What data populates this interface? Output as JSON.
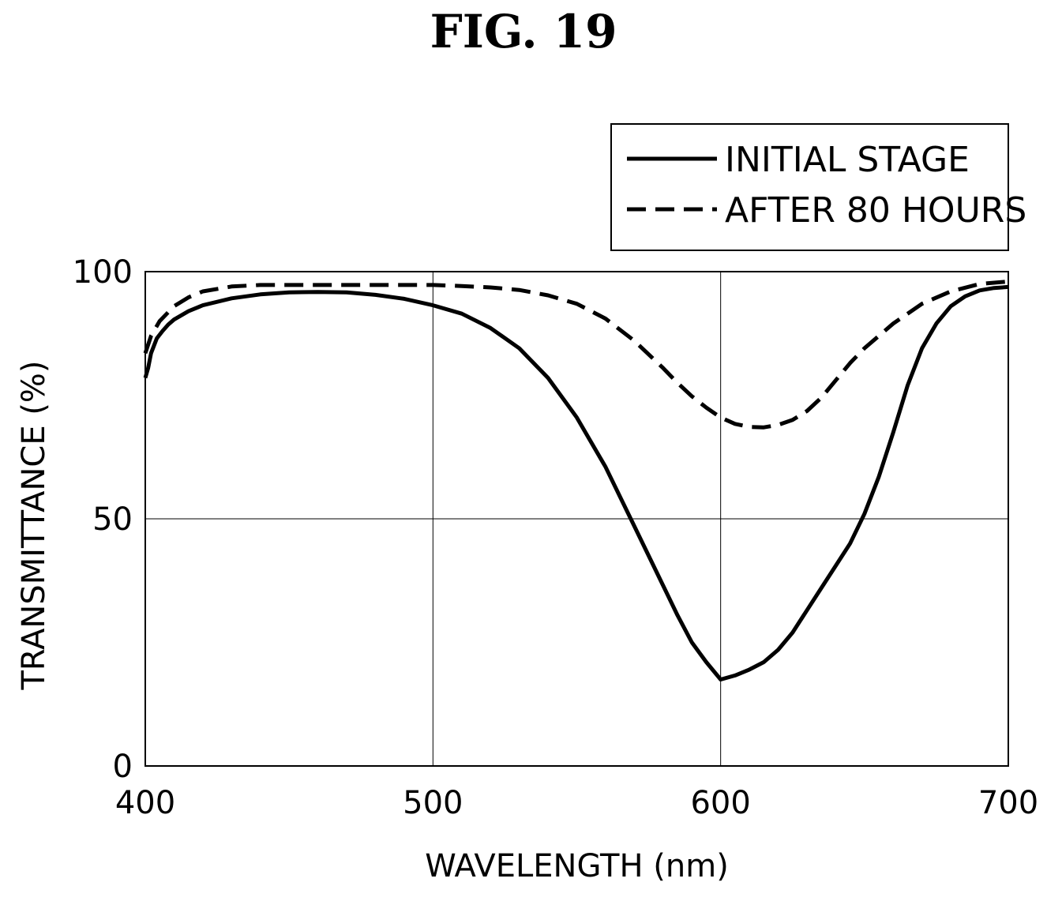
{
  "figure": {
    "title": "FIG. 19"
  },
  "chart_data": {
    "type": "line",
    "title": "FIG. 19",
    "xlabel": "WAVELENGTH (nm)",
    "ylabel": "TRANSMITTANCE (%)",
    "xlim": [
      400,
      700
    ],
    "ylim": [
      0,
      100
    ],
    "xticks": [
      400,
      500,
      600,
      700
    ],
    "yticks": [
      0,
      50,
      100
    ],
    "grid": true,
    "legend_position": "top-right",
    "series": [
      {
        "name": "INITIAL STAGE",
        "style": "solid",
        "color": "#000000",
        "x": [
          400,
          401,
          402,
          404,
          406,
          408,
          410,
          415,
          420,
          430,
          440,
          450,
          460,
          470,
          480,
          490,
          500,
          510,
          520,
          530,
          540,
          550,
          560,
          570,
          580,
          585,
          590,
          595,
          600,
          605,
          610,
          615,
          620,
          625,
          630,
          635,
          640,
          645,
          650,
          655,
          660,
          665,
          670,
          675,
          680,
          685,
          690,
          695,
          700
        ],
        "values": [
          78.5,
          80.5,
          83.5,
          86.5,
          88.0,
          89.3,
          90.3,
          92.0,
          93.2,
          94.6,
          95.4,
          95.8,
          95.9,
          95.8,
          95.3,
          94.5,
          93.2,
          91.5,
          88.6,
          84.5,
          78.5,
          70.5,
          60.5,
          48.5,
          36.5,
          30.5,
          25.0,
          21.0,
          17.5,
          18.3,
          19.5,
          21.0,
          23.5,
          27.0,
          31.5,
          36.0,
          40.5,
          45.0,
          51.0,
          58.5,
          67.5,
          77.0,
          84.5,
          89.5,
          93.0,
          95.0,
          96.2,
          96.7,
          96.9
        ]
      },
      {
        "name": "AFTER 80 HOURS",
        "style": "dashed",
        "color": "#000000",
        "x": [
          400,
          402,
          405,
          410,
          415,
          420,
          430,
          440,
          450,
          460,
          470,
          480,
          490,
          500,
          510,
          520,
          530,
          540,
          550,
          560,
          570,
          580,
          585,
          590,
          595,
          600,
          605,
          610,
          615,
          620,
          625,
          630,
          635,
          640,
          645,
          650,
          660,
          670,
          680,
          690,
          700
        ],
        "values": [
          83.5,
          87.0,
          90.0,
          93.0,
          94.8,
          96.0,
          97.0,
          97.3,
          97.3,
          97.3,
          97.3,
          97.3,
          97.3,
          97.3,
          97.1,
          96.8,
          96.3,
          95.2,
          93.5,
          90.5,
          86.0,
          80.5,
          77.5,
          74.8,
          72.5,
          70.5,
          69.2,
          68.6,
          68.5,
          69.0,
          70.0,
          71.8,
          74.5,
          78.0,
          81.5,
          84.5,
          89.5,
          93.5,
          96.0,
          97.5,
          98.0
        ]
      }
    ]
  }
}
